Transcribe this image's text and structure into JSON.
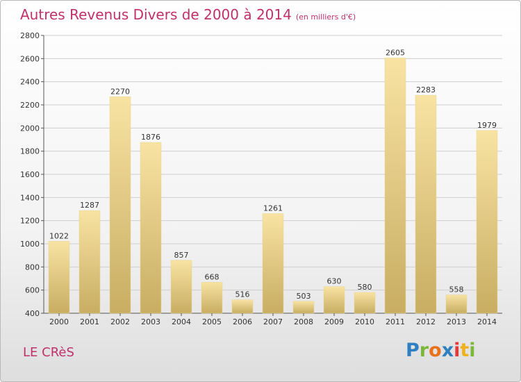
{
  "header": {
    "title": "Autres Revenus Divers de 2000 à 2014",
    "subtitle": "(en milliers d'€)"
  },
  "footer": {
    "city": "LE CRèS",
    "brand": "Proxiti",
    "brand_colors": [
      "#2f7fc1",
      "#7bb83a",
      "#e8721c",
      "#2f7fc1",
      "#e23a3a",
      "#f0b21c",
      "#7bb83a"
    ]
  },
  "colors": {
    "title": "#c0306a",
    "bar_light": "#f8e3a3",
    "bar_dark": "#c8ad62",
    "grid": "#cfcfcf"
  },
  "chart_data": {
    "type": "bar",
    "categories": [
      "2000",
      "2001",
      "2002",
      "2003",
      "2004",
      "2005",
      "2006",
      "2007",
      "2008",
      "2009",
      "2010",
      "2011",
      "2012",
      "2013",
      "2014"
    ],
    "values": [
      1022,
      1287,
      2270,
      1876,
      857,
      668,
      516,
      1261,
      503,
      630,
      580,
      2605,
      2283,
      558,
      1979
    ],
    "ylim": [
      400,
      2800
    ],
    "yticks": [
      400,
      600,
      800,
      1000,
      1200,
      1400,
      1600,
      1800,
      2000,
      2200,
      2400,
      2600,
      2800
    ],
    "grid": true,
    "data_labels": true
  }
}
